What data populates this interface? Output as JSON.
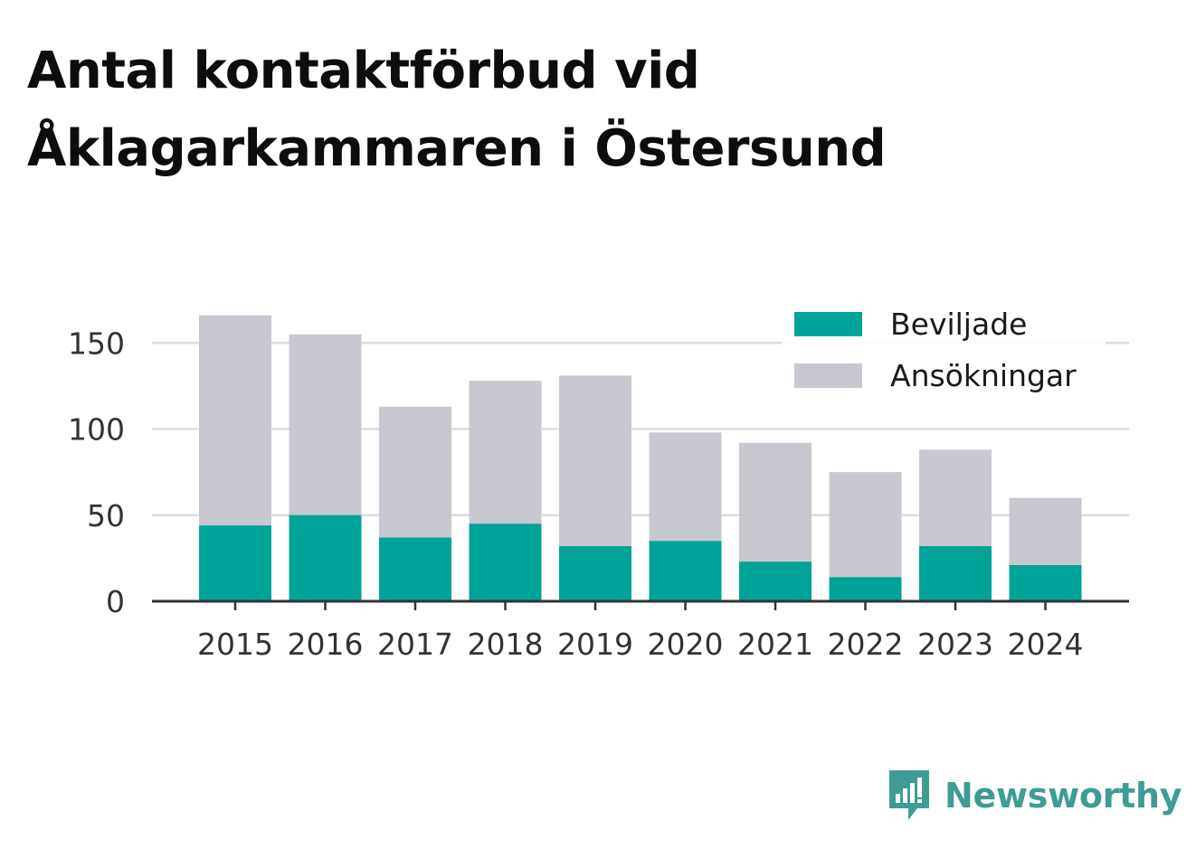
{
  "title_lines": [
    "Antal kontaktförbud vid",
    "Åklagarkammaren i Östersund"
  ],
  "brand": {
    "name": "Newsworthy",
    "color": "#3f9c94"
  },
  "colors": {
    "granted": "#00a398",
    "applications": "#c8c8d0",
    "grid": "#dddddd",
    "axis": "#333333"
  },
  "chart_data": {
    "type": "bar",
    "stacked": false,
    "overlay": true,
    "title": "Antal kontaktförbud vid Åklagarkammaren i Östersund",
    "xlabel": "",
    "ylabel": "",
    "categories": [
      "2015",
      "2016",
      "2017",
      "2018",
      "2019",
      "2020",
      "2021",
      "2022",
      "2023",
      "2024"
    ],
    "series": [
      {
        "name": "Ansökningar",
        "values": [
          166,
          155,
          113,
          128,
          131,
          98,
          92,
          75,
          88,
          60
        ]
      },
      {
        "name": "Beviljade",
        "values": [
          44,
          50,
          37,
          45,
          32,
          35,
          23,
          14,
          32,
          21
        ]
      }
    ],
    "legend": [
      "Beviljade",
      "Ansökningar"
    ],
    "legend_position": "top-right",
    "ylim": [
      0,
      175
    ],
    "yticks": [
      "0",
      "50",
      "100",
      "150"
    ],
    "ytick_values": [
      0,
      50,
      100,
      150
    ],
    "grid": true
  }
}
